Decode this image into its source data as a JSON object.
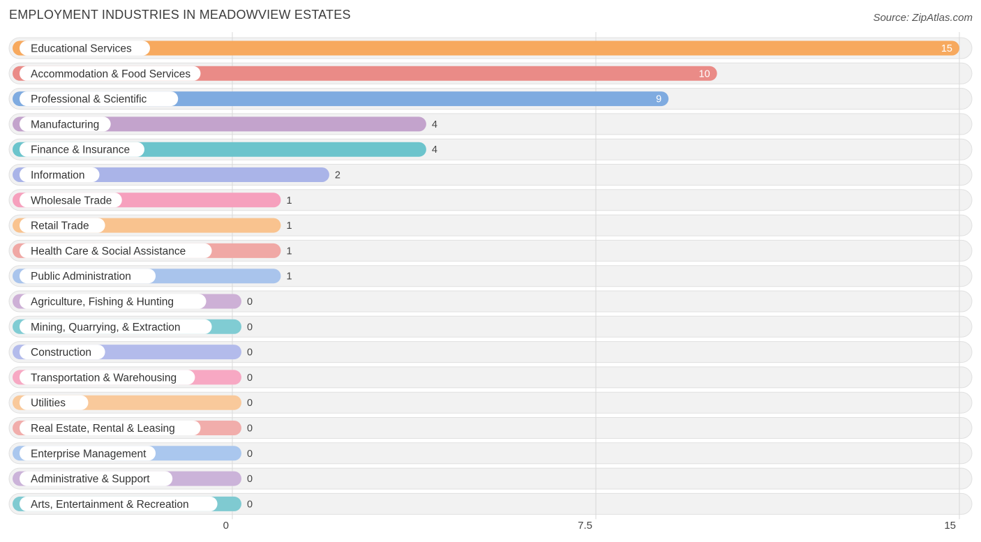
{
  "title": "EMPLOYMENT INDUSTRIES IN MEADOWVIEW ESTATES",
  "source": "Source: ZipAtlas.com",
  "chart_data": {
    "type": "bar",
    "orientation": "horizontal",
    "title": "EMPLOYMENT INDUSTRIES IN MEADOWVIEW ESTATES",
    "xlim": [
      0,
      15
    ],
    "x_ticks": [
      {
        "value": 0,
        "label": "0"
      },
      {
        "value": 7.5,
        "label": "7.5"
      },
      {
        "value": 15,
        "label": "15"
      }
    ],
    "grid": true,
    "categories": [
      "Educational Services",
      "Accommodation & Food Services",
      "Professional & Scientific",
      "Manufacturing",
      "Finance & Insurance",
      "Information",
      "Wholesale Trade",
      "Retail Trade",
      "Health Care & Social Assistance",
      "Public Administration",
      "Agriculture, Fishing & Hunting",
      "Mining, Quarrying, & Extraction",
      "Construction",
      "Transportation & Warehousing",
      "Utilities",
      "Real Estate, Rental & Leasing",
      "Enterprise Management",
      "Administrative & Support",
      "Arts, Entertainment & Recreation"
    ],
    "values": [
      15,
      10,
      9,
      4,
      4,
      2,
      1,
      1,
      1,
      1,
      0,
      0,
      0,
      0,
      0,
      0,
      0,
      0,
      0
    ],
    "value_labels": [
      "15",
      "10",
      "9",
      "4",
      "4",
      "2",
      "1",
      "1",
      "1",
      "1",
      "0",
      "0",
      "0",
      "0",
      "0",
      "0",
      "0",
      "0",
      "0"
    ],
    "colors": [
      "#f7a95e",
      "#ea8b87",
      "#7fabe0",
      "#c3a3cc",
      "#6cc4cc",
      "#aab4e8",
      "#f6a0bd",
      "#f9c38f",
      "#f0a8a5",
      "#a9c4ec",
      "#cdb0d6",
      "#80ccd3",
      "#b3bbeb",
      "#f7a8c3",
      "#f9c99b",
      "#f1adab",
      "#aac7ee",
      "#cbb3d9",
      "#7fcad1"
    ]
  }
}
